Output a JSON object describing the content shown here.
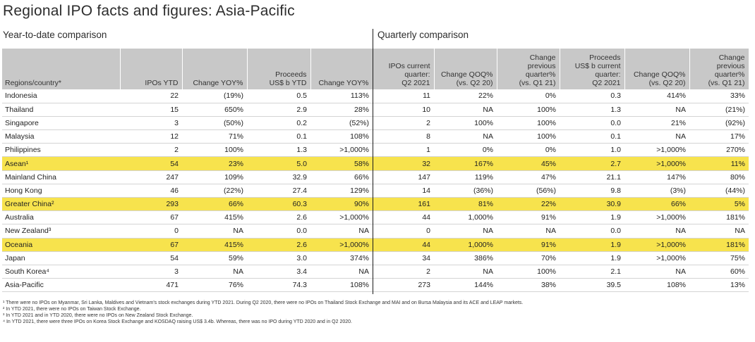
{
  "title": "Regional IPO facts and figures: Asia-Pacific",
  "subtitle_left": "Year-to-date comparison",
  "subtitle_right": "Quarterly comparison",
  "columns": [
    "Regions/country*",
    "IPOs YTD",
    "Change YOY%",
    "Proceeds\nUS$ b YTD",
    "Change YOY%",
    "IPOs current\nquarter:\nQ2 2021",
    "Change QOQ%\n(vs. Q2 20)",
    "Change\nprevious\nquarter%\n(vs. Q1 21)",
    "Proceeds\nUS$ b current\nquarter:\nQ2 2021",
    "Change QOQ%\n(vs. Q2 20)",
    "Change\nprevious\nquarter%\n(vs. Q1 21)"
  ],
  "rows": [
    {
      "cells": [
        "Indonesia",
        "22",
        "(19%)",
        "0.5",
        "113%",
        "11",
        "22%",
        "0%",
        "0.3",
        "414%",
        "33%"
      ],
      "highlight": false
    },
    {
      "cells": [
        "Thailand",
        "15",
        "650%",
        "2.9",
        "28%",
        "10",
        "NA",
        "100%",
        "1.3",
        "NA",
        "(21%)"
      ],
      "highlight": false
    },
    {
      "cells": [
        "Singapore",
        "3",
        "(50%)",
        "0.2",
        "(52%)",
        "2",
        "100%",
        "100%",
        "0.0",
        "21%",
        "(92%)"
      ],
      "highlight": false
    },
    {
      "cells": [
        "Malaysia",
        "12",
        "71%",
        "0.1",
        "108%",
        "8",
        "NA",
        "100%",
        "0.1",
        "NA",
        "17%"
      ],
      "highlight": false
    },
    {
      "cells": [
        "Philippines",
        "2",
        "100%",
        "1.3",
        ">1,000%",
        "1",
        "0%",
        "0%",
        "1.0",
        ">1,000%",
        "270%"
      ],
      "highlight": false
    },
    {
      "cells": [
        "Asean¹",
        "54",
        "23%",
        "5.0",
        "58%",
        "32",
        "167%",
        "45%",
        "2.7",
        ">1,000%",
        "11%"
      ],
      "highlight": true
    },
    {
      "cells": [
        "Mainland China",
        "247",
        "109%",
        "32.9",
        "66%",
        "147",
        "119%",
        "47%",
        "21.1",
        "147%",
        "80%"
      ],
      "highlight": false
    },
    {
      "cells": [
        "Hong Kong",
        "46",
        "(22%)",
        "27.4",
        "129%",
        "14",
        "(36%)",
        "(56%)",
        "9.8",
        "(3%)",
        "(44%)"
      ],
      "highlight": false
    },
    {
      "cells": [
        "Greater China²",
        "293",
        "66%",
        "60.3",
        "90%",
        "161",
        "81%",
        "22%",
        "30.9",
        "66%",
        "5%"
      ],
      "highlight": true
    },
    {
      "cells": [
        "Australia",
        "67",
        "415%",
        "2.6",
        ">1,000%",
        "44",
        "1,000%",
        "91%",
        "1.9",
        ">1,000%",
        "181%"
      ],
      "highlight": false
    },
    {
      "cells": [
        "New Zealand³",
        "0",
        "NA",
        "0.0",
        "NA",
        "0",
        "NA",
        "NA",
        "0.0",
        "NA",
        "NA"
      ],
      "highlight": false
    },
    {
      "cells": [
        "Oceania",
        "67",
        "415%",
        "2.6",
        ">1,000%",
        "44",
        "1,000%",
        "91%",
        "1.9",
        ">1,000%",
        "181%"
      ],
      "highlight": true
    },
    {
      "cells": [
        "Japan",
        "54",
        "59%",
        "3.0",
        "374%",
        "34",
        "386%",
        "70%",
        "1.9",
        ">1,000%",
        "75%"
      ],
      "highlight": false
    },
    {
      "cells": [
        "South Korea⁴",
        "3",
        "NA",
        "3.4",
        "NA",
        "2",
        "NA",
        "100%",
        "2.1",
        "NA",
        "60%"
      ],
      "highlight": false
    },
    {
      "cells": [
        "Asia-Pacific",
        "471",
        "76%",
        "74.3",
        "108%",
        "273",
        "144%",
        "38%",
        "39.5",
        "108%",
        "13%"
      ],
      "highlight": false
    }
  ],
  "footnotes": [
    "¹ There were no IPOs on Myanmar, Sri Lanka, Maldives and Vietnam's stock exchanges during YTD 2021. During Q2 2020, there were no IPOs on Thailand Stock Exchange and MAI and on Bursa Malaysia and its ACE and LEAP markets.",
    "² In YTD 2021, there were no IPOs on Taiwan Stock Exchange.",
    "³ In YTD 2021 and in YTD 2020, there were no IPOs on New Zealand Stock Exchange.",
    "⁴ In YTD 2021, there were three IPOs on Korea Stock Exchange and KOSDAQ raising US$ 3.4b. Whereas, there was no IPO during YTD 2020 and in Q2 2020."
  ],
  "colors": {
    "highlight": "#f7e34d",
    "header_bg": "#c8c8c8",
    "row_divider": "#d4d4d4"
  }
}
